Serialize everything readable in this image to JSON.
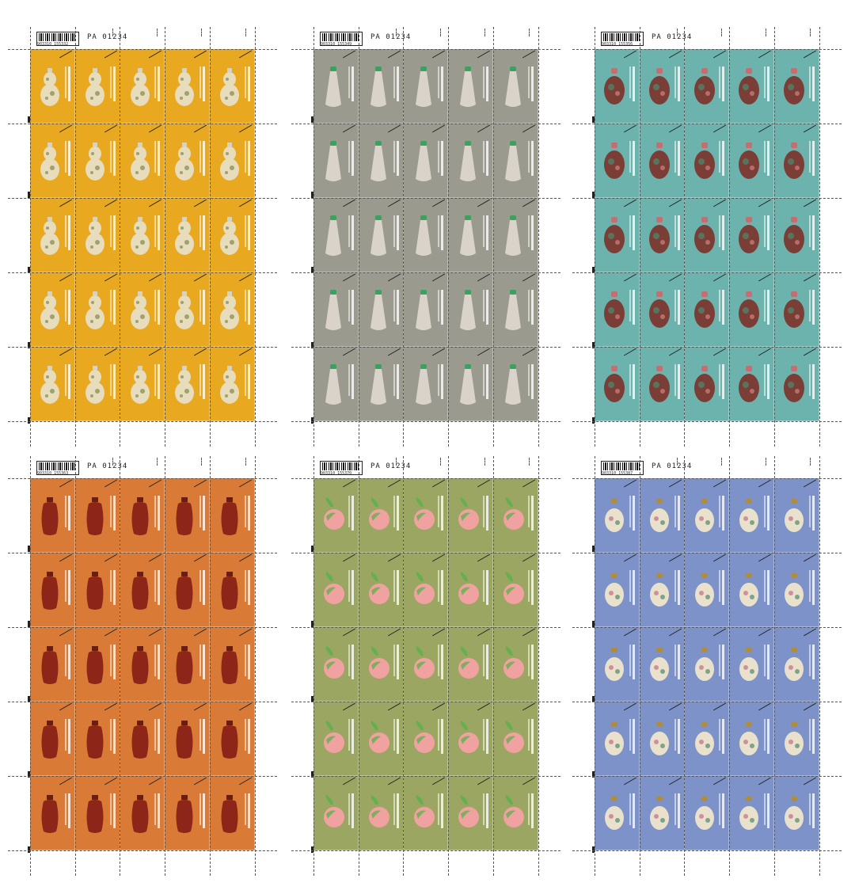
{
  "sheets": [
    {
      "serial": "PA 01234",
      "barcode": "4 903310 155332",
      "bg": "#e8a81f",
      "bottle": "gourd"
    },
    {
      "serial": "PA 01234",
      "barcode": "4 903310 155349",
      "bg": "#9a9a8f",
      "bottle": "flask"
    },
    {
      "serial": "PA 01234",
      "barcode": "4 903310 155356",
      "bg": "#6cb3ad",
      "bottle": "round-dark"
    },
    {
      "serial": "PA 01234",
      "barcode": "4 903310 155363",
      "bg": "#d97b37",
      "bottle": "carved-red"
    },
    {
      "serial": "PA 01234",
      "barcode": "4 903310 155370",
      "bg": "#9ba663",
      "bottle": "peach"
    },
    {
      "serial": "PA 01234",
      "barcode": "4 903310 155387",
      "bg": "#7c92c8",
      "bottle": "enamel"
    }
  ],
  "colors": {
    "gourd_body": "#e7dcbb",
    "gourd_pattern": "#6f7a3a",
    "cap": "#d8d3c1",
    "flask_body": "#d9d3ca",
    "flask_cap": "#3aa25e",
    "round_body": "#7a3e36",
    "round_cap": "#c36f72",
    "carved_body": "#8d2518",
    "carved_cap": "#6a1d12",
    "peach_body": "#f0a2a0",
    "peach_leaf": "#64b04f",
    "enamel_body": "#e9e1cc",
    "enamel_cap": "#b08d3e"
  }
}
